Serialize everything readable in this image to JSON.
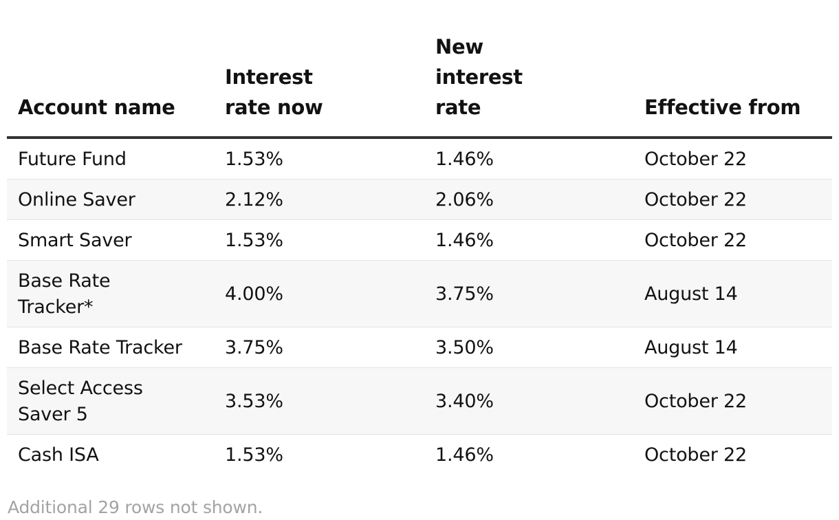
{
  "table": {
    "headers": [
      {
        "label": "Account name"
      },
      {
        "label": "Interest rate now"
      },
      {
        "label": "New interest rate"
      },
      {
        "label": "Effective from"
      }
    ],
    "rows": [
      {
        "account": "Future Fund",
        "rate_now": "1.53%",
        "new_rate": "1.46%",
        "effective": "October 22"
      },
      {
        "account": "Online Saver",
        "rate_now": "2.12%",
        "new_rate": "2.06%",
        "effective": "October 22"
      },
      {
        "account": "Smart Saver",
        "rate_now": "1.53%",
        "new_rate": "1.46%",
        "effective": "October 22"
      },
      {
        "account": "Base Rate Tracker*",
        "rate_now": "4.00%",
        "new_rate": "3.75%",
        "effective": "August 14"
      },
      {
        "account": "Base Rate Tracker",
        "rate_now": "3.75%",
        "new_rate": "3.50%",
        "effective": "August 14"
      },
      {
        "account": "Select Access Saver 5",
        "rate_now": "3.53%",
        "new_rate": "3.40%",
        "effective": "October 22"
      },
      {
        "account": "Cash ISA",
        "rate_now": "1.53%",
        "new_rate": "1.46%",
        "effective": "October 22"
      }
    ]
  },
  "footer": {
    "note": "Additional 29 rows not shown."
  }
}
